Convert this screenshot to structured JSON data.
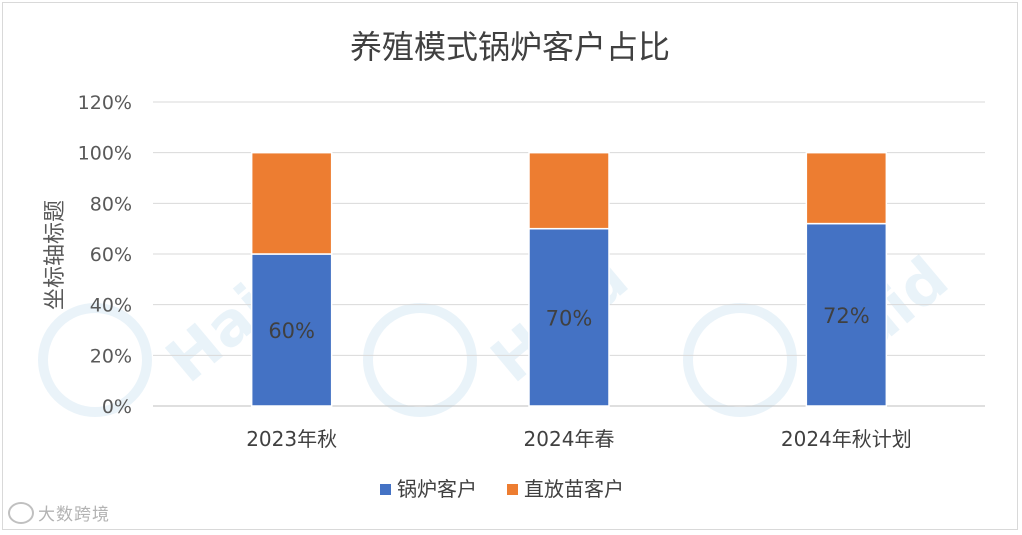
{
  "chart_data": {
    "type": "bar",
    "stacked": true,
    "title": "养殖模式锅炉客户占比",
    "ylabel": "坐标轴标题",
    "xlabel": "",
    "categories": [
      "2023年秋",
      "2024年春",
      "2024年秋计划"
    ],
    "ylim": [
      0,
      1.2
    ],
    "yticks": [
      "0%",
      "20%",
      "40%",
      "60%",
      "80%",
      "100%",
      "120%"
    ],
    "ytick_values": [
      0,
      0.2,
      0.4,
      0.6,
      0.8,
      1.0,
      1.2
    ],
    "grid": true,
    "legend_position": "bottom",
    "series": [
      {
        "name": "锅炉客户",
        "values": [
          0.6,
          0.7,
          0.72
        ],
        "color": "#4472c4",
        "labels": [
          "60%",
          "70%",
          "72%"
        ]
      },
      {
        "name": "直放苗客户",
        "values": [
          0.4,
          0.3,
          0.28
        ],
        "color": "#ed7d31"
      }
    ]
  },
  "watermark": {
    "brand": "Haid",
    "corner_text": "大数跨境"
  }
}
